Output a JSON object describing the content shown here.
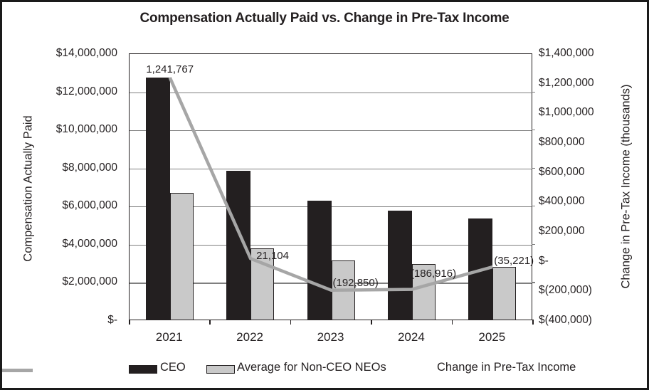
{
  "title": "Compensation Actually Paid vs. Change in Pre-Tax Income",
  "chart_data": {
    "type": "bar",
    "subtype": "bar+line combo, dual axis",
    "categories": [
      "2021",
      "2022",
      "2023",
      "2024",
      "2025"
    ],
    "series": [
      {
        "name": "CEO",
        "type": "bar",
        "axis": "left",
        "color": "#231f20",
        "values": [
          12700000,
          7800000,
          6250000,
          5700000,
          5300000
        ]
      },
      {
        "name": "Average for Non-CEO NEOs",
        "type": "bar",
        "axis": "left",
        "color": "#c9c9c9",
        "border_color": "#231f20",
        "values": [
          6650000,
          3750000,
          3100000,
          2900000,
          2750000
        ]
      },
      {
        "name": "Change in Pre-Tax Income",
        "type": "line",
        "axis": "right",
        "color": "#a6a6a6",
        "values": [
          1241767,
          21104,
          -192850,
          -186916,
          -35221
        ],
        "point_labels": [
          "1,241,767",
          "21,104",
          "(192,850)",
          "(186,916)",
          "(35,221)"
        ]
      }
    ],
    "left_axis": {
      "title": "Compensation Actually Paid",
      "min": 0,
      "max": 14000000,
      "tick_step": 2000000,
      "tick_labels": [
        "$14,000,000",
        "$12,000,000",
        "$10,000,000",
        "$8,000,000",
        "$6,000,000",
        "$4,000,000",
        "$2,000,000",
        "$-"
      ]
    },
    "right_axis": {
      "title": "Change in Pre-Tax Income (thousands)",
      "min": -400000,
      "max": 1400000,
      "tick_step": 200000,
      "tick_labels": [
        "$1,400,000",
        "$1,200,000",
        "$1,000,000",
        "$800,000",
        "$600,000",
        "$400,000",
        "$200,000",
        "$-",
        "$(200,000)",
        "$(400,000)"
      ]
    },
    "grid": true,
    "gridline_color": "#7f7f7f",
    "legend_position": "bottom",
    "legend": [
      "CEO",
      "Average for Non-CEO NEOs",
      "Change in Pre-Tax Income"
    ]
  }
}
